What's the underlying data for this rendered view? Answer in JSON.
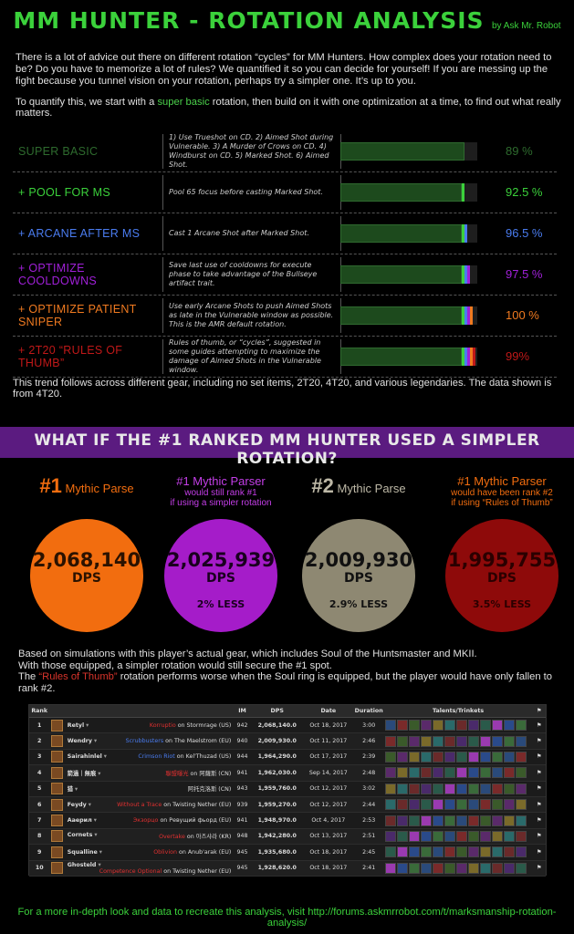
{
  "header": {
    "title": "MM HUNTER - ROTATION ANALYSIS",
    "byline": "by Ask Mr. Robot"
  },
  "intro": {
    "paragraph": "There is a lot of advice out there on different rotation “cycles” for MM Hunters. How complex does your rotation need to be? Do you have to memorize a lot of rules? We quantified it so you can decide for yourself! If you are messing up the fight because you tunnel vision on your rotation, perhaps try a simpler one. It’s up to you.",
    "line2_pre": "To quantify this, we start with a",
    "line2_highlight": "super basic",
    "line2_post": "rotation, then build on it with one optimization at a time, to find out what really matters."
  },
  "chart_data": {
    "type": "bar",
    "title": "Rotation optimizations (relative DPS)",
    "categories": [
      "SUPER BASIC",
      "+ POOL FOR MS",
      "+ ARCANE AFTER MS",
      "+ OPTIMIZE COOLDOWNS",
      "+ OPTIMIZE PATIENT SNIPER",
      "+ 2T20 “RULES OF THUMB”"
    ],
    "values": [
      89,
      92.5,
      96.5,
      97.5,
      100,
      99
    ],
    "value_labels": [
      "89 %",
      "92.5 %",
      "96.5 %",
      "97.5 %",
      "100 %",
      "99%"
    ],
    "descriptions": [
      "1) Use Trueshot on CD. 2) Aimed Shot during Vulnerable. 3) A Murder of Crows on CD. 4) Windburst on CD. 5) Marked Shot. 6) Aimed Shot.",
      "Pool 65 focus before casting Marked Shot.",
      "Cast 1 Arcane Shot after Marked Shot.",
      "Save last use of cooldowns for execute phase to take advantage of the Bullseye artifact trait.",
      "Use early Arcane Shots to push Aimed Shots as late in the Vulnerable window as possible. This is the AMR default rotation.",
      "Rules of thumb, or “cycles”, suggested in some guides attempting to maximize the damage of Aimed Shots in the Vulnerable window."
    ],
    "colors": [
      "#2e6b2e",
      "#3bd13b",
      "#4a7cf0",
      "#a020d8",
      "#f07a20",
      "#c01818"
    ],
    "ylim": [
      0,
      100
    ]
  },
  "trend_text": "This trend follows across different gear, including no set items, 2T20, 4T20, and various legendaries. The data shown is from 4T20.",
  "banner": "WHAT IF THE #1 RANKED MM HUNTER USED A SIMPLER ROTATION?",
  "comparisons": [
    {
      "prefix": "#",
      "num": "1",
      "title": "Mythic Parse",
      "sub1": "",
      "sub2": "",
      "dps": "2,068,140",
      "unit": "DPS",
      "less": "",
      "color": "#f26d0f",
      "text": "#2b1200",
      "head": "#f26d0f"
    },
    {
      "prefix": "",
      "num": "",
      "title": "#1 Mythic Parser",
      "sub1": "would still rank #1",
      "sub2": "if using a simpler rotation",
      "dps": "2,025,939",
      "unit": "DPS",
      "less": "2% LESS",
      "color": "#a51cc9",
      "text": "#1a001f",
      "head": "#c43ee8"
    },
    {
      "prefix": "#",
      "num": "2",
      "title": "Mythic Parse",
      "sub1": "",
      "sub2": "",
      "dps": "2,009,930",
      "unit": "DPS",
      "less": "2.9% LESS",
      "color": "#8e8872",
      "text": "#111111",
      "head": "#bdb8a6"
    },
    {
      "prefix": "",
      "num": "",
      "title": "#1 Mythic Parser",
      "sub1": "would have been rank #2",
      "sub2": "if using “Rules of Thumb”",
      "dps": "1,995,755",
      "unit": "DPS",
      "less": "3.5% LESS",
      "color": "#8e0a0a",
      "text": "#2a0000",
      "head": "#f26d0f"
    }
  ],
  "based": {
    "line1": "Based on simulations with this player’s actual gear, which includes Soul of the Huntsmaster and MKII.",
    "line2": "With those equipped, a simpler rotation would still secure the #1 spot.",
    "line3_pre": "The",
    "line3_highlight": "“Rules of Thumb”",
    "line3_post": "rotation performs worse when the Soul ring is equipped, but the player would have only fallen to rank #2."
  },
  "table": {
    "headers": [
      "Rank",
      "",
      "",
      "IM",
      "DPS",
      "Date",
      "Duration",
      "Talents/Trinkets",
      "⚑"
    ],
    "rows": [
      {
        "rank": "1",
        "name": "Retyl",
        "guild": "Korruptio",
        "server": "on Stormrage (US)",
        "gcolor": "#e03030",
        "im": "942",
        "dps": "2,068,140.0",
        "date": "Oct 18, 2017",
        "dur": "3:00"
      },
      {
        "rank": "2",
        "name": "Wendry",
        "guild": "Scrubbusters",
        "server": "on The Maelstrom (EU)",
        "gcolor": "#4a7cf0",
        "im": "940",
        "dps": "2,009,930.0",
        "date": "Oct 11, 2017",
        "dur": "2:46"
      },
      {
        "rank": "3",
        "name": "Sairahinlel",
        "guild": "Crimson Riot",
        "server": "on Kel'Thuzad (US)",
        "gcolor": "#4a7cf0",
        "im": "944",
        "dps": "1,964,290.0",
        "date": "Oct 17, 2017",
        "dur": "2:39"
      },
      {
        "rank": "4",
        "name": "箭過｜無痕",
        "guild": "聯盟曝光",
        "server": "on 阿薩斯 (CN)",
        "gcolor": "#e03030",
        "im": "941",
        "dps": "1,962,030.0",
        "date": "Sep 14, 2017",
        "dur": "2:48"
      },
      {
        "rank": "5",
        "name": "猎",
        "guild": "",
        "server": "阿托克洛斯 (CN)",
        "gcolor": "#e03030",
        "im": "943",
        "dps": "1,959,760.0",
        "date": "Oct 12, 2017",
        "dur": "3:02"
      },
      {
        "rank": "6",
        "name": "Feydy",
        "guild": "Without a Trace",
        "server": "on Twisting Nether (EU)",
        "gcolor": "#e03030",
        "im": "939",
        "dps": "1,959,270.0",
        "date": "Oct 12, 2017",
        "dur": "2:44"
      },
      {
        "rank": "7",
        "name": "Ааерил",
        "guild": "Экзорцо",
        "server": "on Ревущий фьорд (EU)",
        "gcolor": "#e03030",
        "im": "941",
        "dps": "1,948,970.0",
        "date": "Oct 4, 2017",
        "dur": "2:53"
      },
      {
        "rank": "8",
        "name": "Cornets",
        "guild": "Overtake",
        "server": "on 아즈샤라 (KR)",
        "gcolor": "#e03030",
        "im": "948",
        "dps": "1,942,280.0",
        "date": "Oct 13, 2017",
        "dur": "2:51"
      },
      {
        "rank": "9",
        "name": "Squalline",
        "guild": "Oblivion",
        "server": "on Anub'arak (EU)",
        "gcolor": "#e03030",
        "im": "945",
        "dps": "1,935,680.0",
        "date": "Oct 18, 2017",
        "dur": "2:45"
      },
      {
        "rank": "10",
        "name": "Ghosteld",
        "guild": "Competence Optional",
        "server": "on Twisting Nether (EU)",
        "gcolor": "#e03030",
        "im": "945",
        "dps": "1,928,620.0",
        "date": "Oct 18, 2017",
        "dur": "2:41"
      }
    ],
    "icon_colors": [
      "#2a4a7a",
      "#7a2a2a",
      "#3a5a2a",
      "#5a2a6a",
      "#7a6a2a",
      "#2a6a6a",
      "#6a2a2a",
      "#4a2a6a",
      "#2a5a4a",
      "#9a3ab0",
      "#2a4a8a",
      "#3a6a3a"
    ]
  },
  "footer": {
    "pre": "For a more in-depth look and data to recreate this analysis, visit",
    "url": "http://forums.askmrrobot.com/t/marksmanship-rotation-analysis/"
  }
}
